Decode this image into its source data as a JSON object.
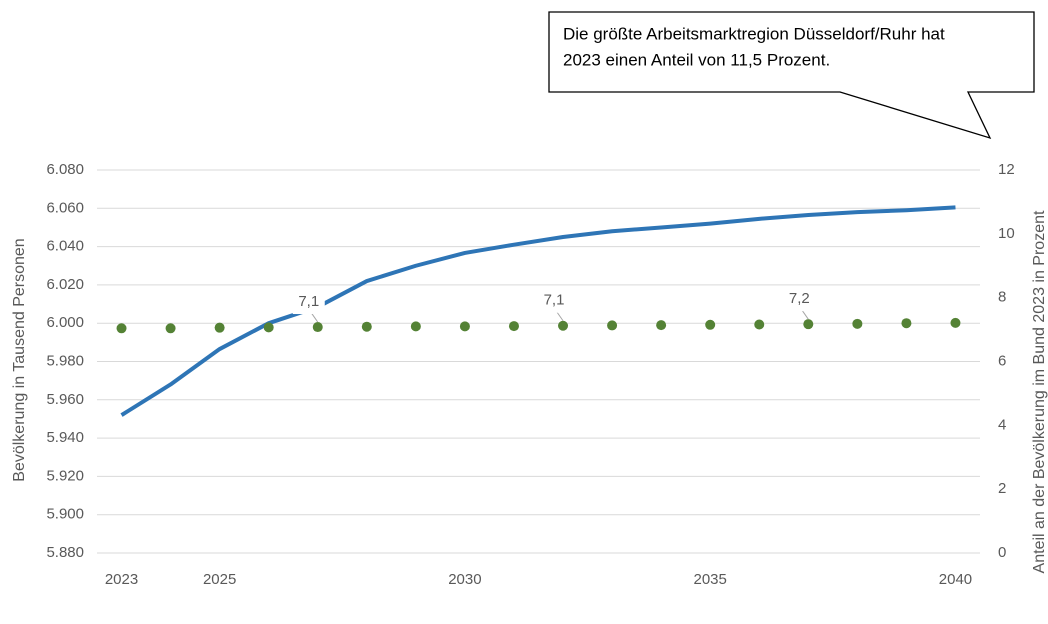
{
  "chart_data": {
    "type": "line",
    "annotation": [
      "Die größte Arbeitsmarktregion Düsseldorf/Ruhr hat",
      "2023 einen Anteil von 11,5 Prozent."
    ],
    "y_label": "Bevölkerung in Tausend Personen",
    "y2_label": "Anteil an der Bevölkerung im Bund 2023 in Prozent",
    "x": [
      2023,
      2024,
      2025,
      2026,
      2027,
      2028,
      2029,
      2030,
      2031,
      2032,
      2033,
      2034,
      2035,
      2036,
      2037,
      2038,
      2039,
      2040
    ],
    "xlim": [
      2022.5,
      2040.5
    ],
    "xticks": [
      2023,
      2025,
      2030,
      2035,
      2040
    ],
    "ylim": [
      5880,
      6080
    ],
    "yticks": [
      {
        "value": 5880,
        "label": "5.880"
      },
      {
        "value": 5900,
        "label": "5.900"
      },
      {
        "value": 5920,
        "label": "5.920"
      },
      {
        "value": 5940,
        "label": "5.940"
      },
      {
        "value": 5960,
        "label": "5.960"
      },
      {
        "value": 5980,
        "label": "5.980"
      },
      {
        "value": 6000,
        "label": "6.000"
      },
      {
        "value": 6020,
        "label": "6.020"
      },
      {
        "value": 6040,
        "label": "6.040"
      },
      {
        "value": 6060,
        "label": "6.060"
      },
      {
        "value": 6080,
        "label": "6.080"
      }
    ],
    "y2lim": [
      0,
      12
    ],
    "y2ticks": [
      0,
      2,
      4,
      6,
      8,
      10,
      12
    ],
    "grid": true,
    "series": [
      {
        "style": "line",
        "color": "#2e75b6",
        "values": [
          5952,
          5968,
          5986.5,
          6000,
          6008.5,
          6022,
          6030,
          6036.7,
          6041,
          6045,
          6048,
          6050,
          6052,
          6054.5,
          6056.5,
          6058,
          6059,
          6060.5
        ]
      },
      {
        "style": "markers",
        "axis": "y2",
        "color": "#548235",
        "values": [
          7.04,
          7.04,
          7.06,
          7.07,
          7.08,
          7.09,
          7.1,
          7.1,
          7.11,
          7.12,
          7.13,
          7.14,
          7.15,
          7.16,
          7.17,
          7.18,
          7.2,
          7.21
        ],
        "value_labels": [
          null,
          null,
          null,
          null,
          "7,1",
          null,
          null,
          null,
          null,
          "7,1",
          null,
          null,
          null,
          null,
          "7,2",
          null,
          null,
          null
        ]
      }
    ]
  }
}
